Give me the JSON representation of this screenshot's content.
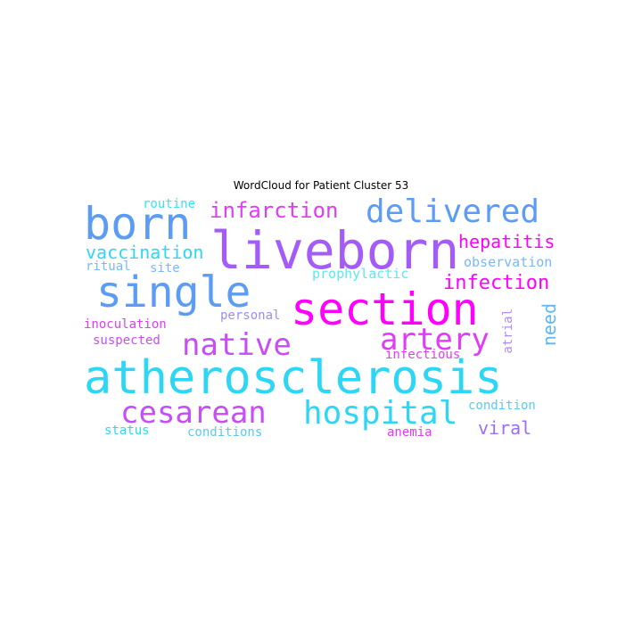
{
  "chart_data": {
    "type": "wordcloud",
    "title": "WordCloud for Patient Cluster 53",
    "words": [
      {
        "text": "atherosclerosis",
        "color": "#2ed6f5"
      },
      {
        "text": "liveborn",
        "color": "#a35cf7"
      },
      {
        "text": "section",
        "color": "#ff00ff"
      },
      {
        "text": "single",
        "color": "#5c9cf5"
      },
      {
        "text": "born",
        "color": "#5c9cf5"
      },
      {
        "text": "delivered",
        "color": "#5c9cf5"
      },
      {
        "text": "hospital",
        "color": "#2ed6f5"
      },
      {
        "text": "cesarean",
        "color": "#c84cf7"
      },
      {
        "text": "native",
        "color": "#c84cf7"
      },
      {
        "text": "artery",
        "color": "#e03cf7"
      },
      {
        "text": "infarction",
        "color": "#e03cf7"
      },
      {
        "text": "infection",
        "color": "#ff00ff"
      },
      {
        "text": "hepatitis",
        "color": "#ff00ff"
      },
      {
        "text": "vaccination",
        "color": "#2ed6f5"
      },
      {
        "text": "viral",
        "color": "#9c6cf7"
      },
      {
        "text": "need",
        "color": "#5cb8f5"
      },
      {
        "text": "prophylactic",
        "color": "#5ce8f5"
      },
      {
        "text": "observation",
        "color": "#7ab8f5"
      },
      {
        "text": "routine",
        "color": "#3ce0f5"
      },
      {
        "text": "ritual",
        "color": "#7ab8f5"
      },
      {
        "text": "site",
        "color": "#7ab8f5"
      },
      {
        "text": "inoculation",
        "color": "#e03cf7"
      },
      {
        "text": "personal",
        "color": "#9c8cf5"
      },
      {
        "text": "suspected",
        "color": "#c84cf7"
      },
      {
        "text": "atrial",
        "color": "#b38cf5"
      },
      {
        "text": "infectious",
        "color": "#e03cf7"
      },
      {
        "text": "condition",
        "color": "#5cc8f5"
      },
      {
        "text": "status",
        "color": "#2ed6f5"
      },
      {
        "text": "conditions",
        "color": "#5cc8f5"
      },
      {
        "text": "anemia",
        "color": "#e03cf7"
      }
    ]
  }
}
